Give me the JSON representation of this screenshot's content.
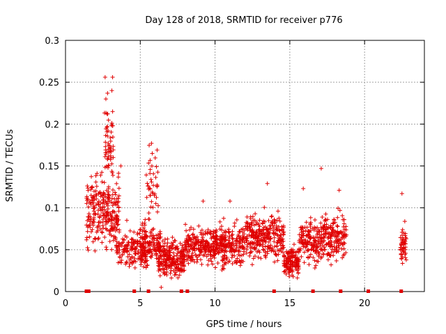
{
  "chart_data": {
    "type": "scatter",
    "title": "Day 128 of 2018, SRMTID for receiver p776",
    "xlabel": "GPS time / hours",
    "ylabel": "SRMTID / TECUs",
    "xlim": [
      0,
      24
    ],
    "ylim": [
      0,
      0.3
    ],
    "xticks": [
      "0",
      "5",
      "10",
      "15",
      "20"
    ],
    "yticks": [
      "0",
      "0.05",
      "0.1",
      "0.15",
      "0.2",
      "0.25",
      "0.3"
    ],
    "grid": true,
    "series": [
      {
        "name": "SRMTID",
        "color": "#e00000",
        "marker": "+",
        "segments": [
          {
            "x_range": [
              1.4,
              3.6
            ],
            "y_center": 0.095,
            "spread": 0.04,
            "count": 260
          },
          {
            "x_range": [
              2.6,
              3.2
            ],
            "y_center": 0.17,
            "spread": 0.05,
            "count": 60
          },
          {
            "x_range": [
              3.4,
              5.4
            ],
            "y_center": 0.05,
            "spread": 0.02,
            "count": 170
          },
          {
            "x_range": [
              5.0,
              6.4
            ],
            "y_center": 0.055,
            "spread": 0.025,
            "count": 140
          },
          {
            "x_range": [
              5.4,
              6.2
            ],
            "y_center": 0.13,
            "spread": 0.04,
            "count": 40
          },
          {
            "x_range": [
              6.2,
              8.0
            ],
            "y_center": 0.04,
            "spread": 0.02,
            "count": 230
          },
          {
            "x_range": [
              8.0,
              10.0
            ],
            "y_center": 0.055,
            "spread": 0.022,
            "count": 220
          },
          {
            "x_range": [
              10.0,
              12.0
            ],
            "y_center": 0.055,
            "spread": 0.022,
            "count": 230
          },
          {
            "x_range": [
              12.0,
              14.6
            ],
            "y_center": 0.065,
            "spread": 0.025,
            "count": 290
          },
          {
            "x_range": [
              14.6,
              15.6
            ],
            "y_center": 0.035,
            "spread": 0.015,
            "count": 150
          },
          {
            "x_range": [
              15.6,
              17.2
            ],
            "y_center": 0.06,
            "spread": 0.025,
            "count": 170
          },
          {
            "x_range": [
              17.2,
              18.8
            ],
            "y_center": 0.065,
            "spread": 0.025,
            "count": 170
          },
          {
            "x_range": [
              22.4,
              22.8
            ],
            "y_center": 0.055,
            "spread": 0.02,
            "count": 50
          }
        ],
        "outliers": [
          {
            "x": 2.65,
            "y": 0.256
          },
          {
            "x": 3.15,
            "y": 0.256
          },
          {
            "x": 2.7,
            "y": 0.23
          },
          {
            "x": 3.1,
            "y": 0.24
          },
          {
            "x": 3.15,
            "y": 0.215
          },
          {
            "x": 2.8,
            "y": 0.197
          },
          {
            "x": 5.75,
            "y": 0.177
          },
          {
            "x": 5.8,
            "y": 0.165
          },
          {
            "x": 17.1,
            "y": 0.147
          },
          {
            "x": 13.5,
            "y": 0.129
          },
          {
            "x": 22.5,
            "y": 0.117
          },
          {
            "x": 15.9,
            "y": 0.123
          },
          {
            "x": 18.3,
            "y": 0.121
          },
          {
            "x": 9.2,
            "y": 0.108
          },
          {
            "x": 11.0,
            "y": 0.108
          },
          {
            "x": 3.7,
            "y": 0.15
          },
          {
            "x": 6.4,
            "y": 0.005
          },
          {
            "x": 4.1,
            "y": 0.085
          }
        ]
      }
    ],
    "gap_markers_x": [
      1.4,
      1.55,
      4.6,
      5.55,
      7.75,
      8.15,
      13.95,
      16.55,
      18.4,
      20.25,
      22.45
    ]
  }
}
